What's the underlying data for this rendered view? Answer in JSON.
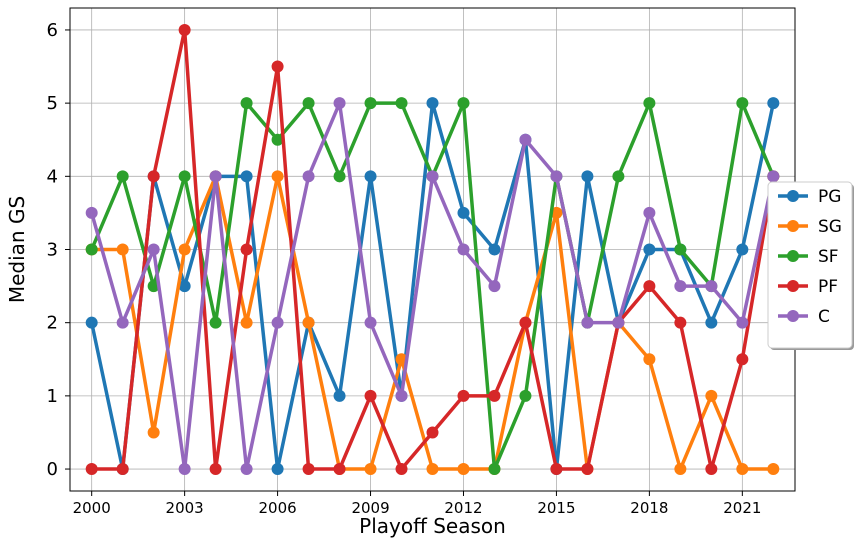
{
  "chart_data": {
    "type": "line",
    "title": "",
    "xlabel": "Playoff Season",
    "ylabel": "Median GS",
    "x": [
      2000,
      2001,
      2002,
      2003,
      2004,
      2005,
      2006,
      2007,
      2008,
      2009,
      2010,
      2011,
      2012,
      2013,
      2014,
      2015,
      2016,
      2017,
      2018,
      2019,
      2020,
      2021,
      2022
    ],
    "xlim": [
      1999.3,
      2022.7
    ],
    "ylim": [
      -0.3,
      6.3
    ],
    "xticks": [
      2000,
      2003,
      2006,
      2009,
      2012,
      2015,
      2018,
      2021
    ],
    "yticks": [
      0,
      1,
      2,
      3,
      4,
      5,
      6
    ],
    "grid": true,
    "legend_position": "right",
    "series": [
      {
        "name": "PG",
        "color": "#1f77b4",
        "values": [
          2,
          0,
          4,
          2.5,
          4,
          4,
          0,
          2,
          1,
          4,
          1,
          5,
          3.5,
          3,
          4.5,
          0,
          4,
          2,
          3,
          3,
          2,
          3,
          5
        ]
      },
      {
        "name": "SG",
        "color": "#ff7f0e",
        "values": [
          3,
          3,
          0.5,
          3,
          4,
          2,
          4,
          2,
          0,
          0,
          1.5,
          0,
          0,
          0,
          2,
          3.5,
          0,
          2,
          1.5,
          0,
          1,
          0,
          0
        ]
      },
      {
        "name": "SF",
        "color": "#2ca02c",
        "values": [
          3,
          4,
          2.5,
          4,
          2,
          5,
          4.5,
          5,
          4,
          5,
          5,
          4,
          5,
          0,
          1,
          4,
          2,
          4,
          5,
          3,
          2.5,
          5,
          4
        ]
      },
      {
        "name": "PF",
        "color": "#d62728",
        "values": [
          0,
          0,
          4,
          6,
          0,
          3,
          5.5,
          0,
          0,
          1,
          0,
          0.5,
          1,
          1,
          2,
          0,
          0,
          2,
          2.5,
          2,
          0,
          1.5,
          4
        ]
      },
      {
        "name": "C",
        "color": "#9467bd",
        "values": [
          3.5,
          2,
          3,
          0,
          4,
          0,
          2,
          4,
          5,
          2,
          1,
          4,
          3,
          2.5,
          4.5,
          4,
          2,
          2,
          3.5,
          2.5,
          2.5,
          2,
          4
        ]
      }
    ]
  }
}
